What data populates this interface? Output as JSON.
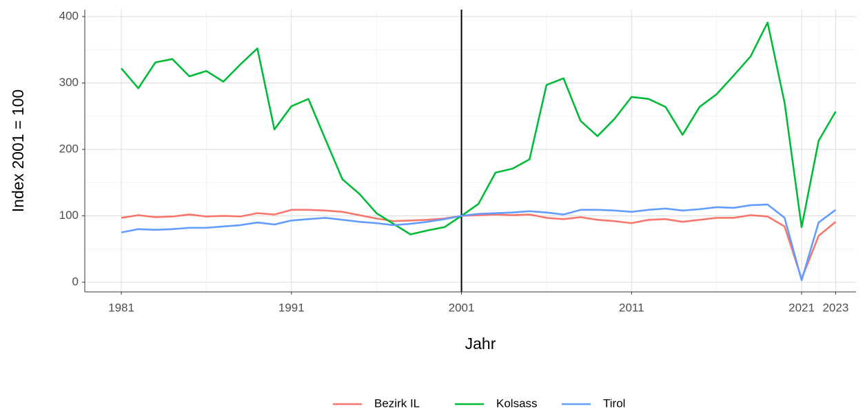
{
  "chart_data": {
    "type": "line",
    "x_label": "Jahr",
    "y_label": "Index 2001 = 100",
    "x": [
      1981,
      1982,
      1983,
      1984,
      1985,
      1986,
      1987,
      1988,
      1989,
      1990,
      1991,
      1992,
      1993,
      1994,
      1995,
      1996,
      1997,
      1998,
      1999,
      2000,
      2001,
      2002,
      2003,
      2004,
      2005,
      2006,
      2007,
      2008,
      2009,
      2010,
      2011,
      2012,
      2013,
      2014,
      2015,
      2016,
      2017,
      2018,
      2019,
      2020,
      2021,
      2022,
      2023
    ],
    "series": [
      {
        "name": "Bezirk IL",
        "color": "#F8766D",
        "values": [
          97,
          101,
          98,
          99,
          102,
          99,
          100,
          99,
          104,
          102,
          109,
          109,
          108,
          106,
          101,
          96,
          92,
          93,
          94,
          96,
          100,
          101,
          102,
          101,
          102,
          97,
          95,
          98,
          94,
          92,
          89,
          94,
          95,
          91,
          94,
          97,
          97,
          101,
          99,
          84,
          5,
          70,
          91
        ]
      },
      {
        "name": "Kolsass",
        "color": "#00BA38",
        "values": [
          322,
          292,
          331,
          336,
          310,
          318,
          302,
          328,
          352,
          230,
          265,
          276,
          215,
          155,
          133,
          104,
          88,
          72,
          78,
          83,
          100,
          118,
          165,
          171,
          185,
          297,
          307,
          243,
          220,
          246,
          279,
          276,
          264,
          222,
          264,
          283,
          311,
          340,
          391,
          270,
          83,
          213,
          257
        ]
      },
      {
        "name": "Tirol",
        "color": "#619CFF",
        "values": [
          75,
          80,
          79,
          80,
          82,
          82,
          84,
          86,
          90,
          87,
          93,
          95,
          97,
          94,
          91,
          89,
          86,
          88,
          91,
          95,
          100,
          103,
          104,
          105,
          107,
          105,
          102,
          109,
          109,
          108,
          106,
          109,
          111,
          108,
          110,
          113,
          112,
          116,
          117,
          97,
          3,
          90,
          109
        ]
      }
    ],
    "vline": 2001,
    "xlim": [
      1978.85,
      2024.2
    ],
    "xticks": [
      1981,
      1991,
      2001,
      2011,
      2021,
      2023
    ],
    "xticks_minor": [
      1986,
      1996,
      2006,
      2016,
      2022
    ],
    "ylim": [
      -14.5,
      410.4
    ],
    "yticks": [
      0,
      100,
      200,
      300,
      400
    ],
    "yticks_minor": [
      50,
      150,
      250,
      350
    ],
    "grid": true,
    "legend": "bottom"
  }
}
